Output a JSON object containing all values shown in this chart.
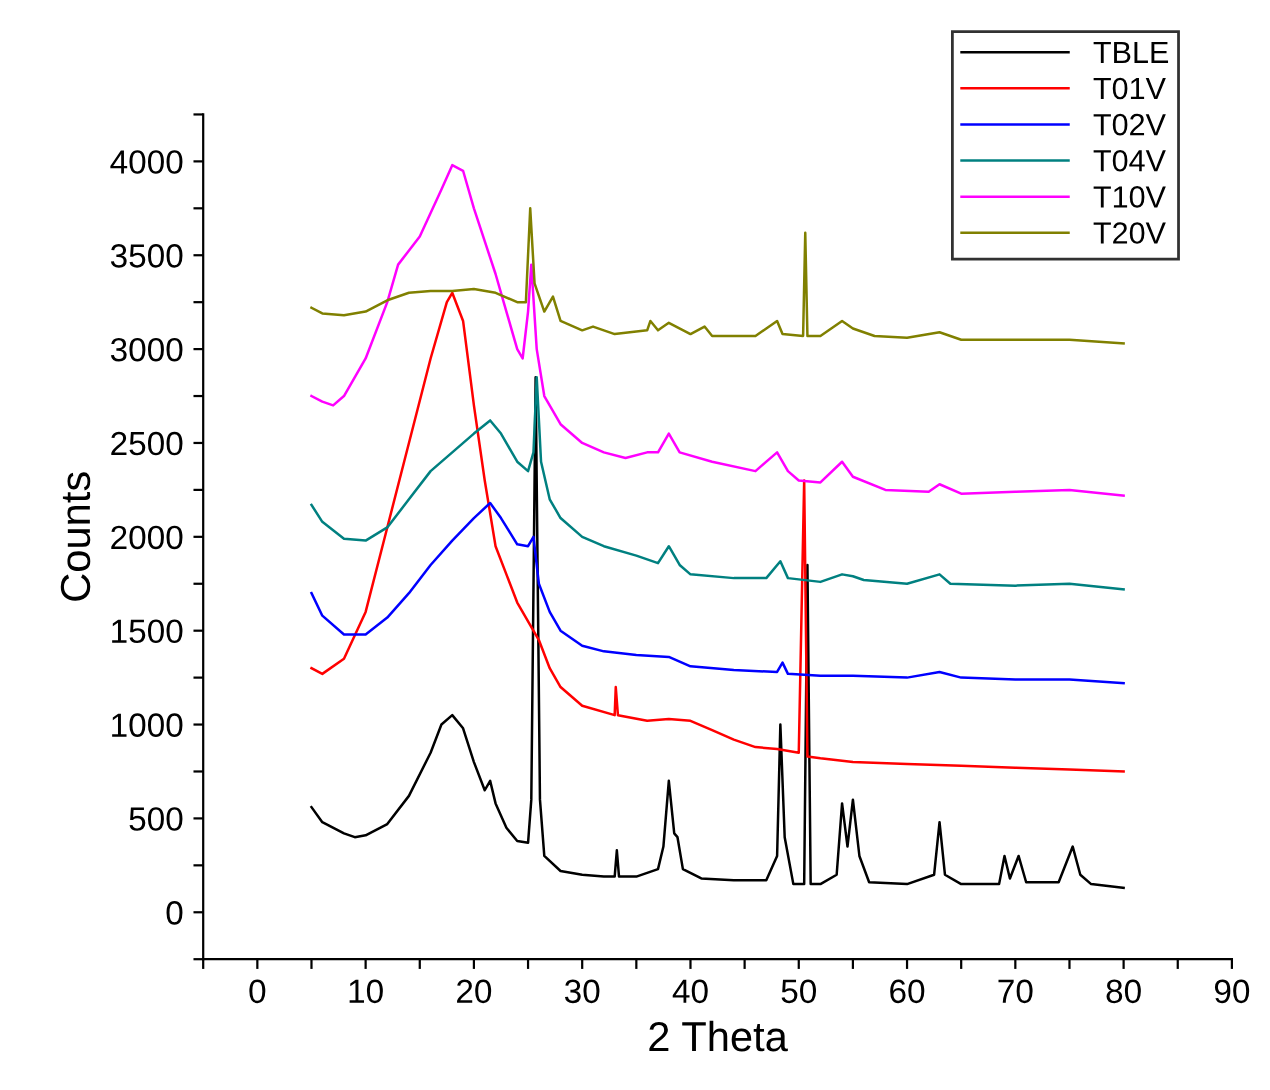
{
  "chart_data": {
    "type": "line",
    "xlabel": "2 Theta",
    "ylabel": "Counts",
    "xlim": [
      -5,
      90
    ],
    "ylim": [
      -250,
      4250
    ],
    "xticks": [
      {
        "value": -5,
        "label": null
      },
      0,
      {
        "value": 5,
        "label": null
      },
      10,
      {
        "value": 15,
        "label": null
      },
      20,
      {
        "value": 25,
        "label": null
      },
      30,
      {
        "value": 35,
        "label": null
      },
      40,
      {
        "value": 45,
        "label": null
      },
      50,
      {
        "value": 55,
        "label": null
      },
      60,
      {
        "value": 65,
        "label": null
      },
      70,
      {
        "value": 75,
        "label": null
      },
      80,
      {
        "value": 85,
        "label": null
      },
      90
    ],
    "yticks": [
      {
        "value": -250,
        "label": null
      },
      0,
      {
        "value": 250,
        "label": null
      },
      500,
      {
        "value": 750,
        "label": null
      },
      1000,
      {
        "value": 1250,
        "label": null
      },
      1500,
      {
        "value": 1750,
        "label": null
      },
      2000,
      {
        "value": 2250,
        "label": null
      },
      2500,
      {
        "value": 2750,
        "label": null
      },
      3000,
      {
        "value": 3250,
        "label": null
      },
      3500,
      {
        "value": 3750,
        "label": null
      },
      4000,
      {
        "value": 4250,
        "label": null
      }
    ],
    "legend": "top right",
    "grid": false,
    "marker": "none",
    "line_style": "solid",
    "series": [
      {
        "name": "TBLE",
        "color": "#000000",
        "x": [
          5,
          6,
          8,
          9,
          10,
          12,
          14,
          16,
          17,
          18,
          19,
          20,
          21,
          21.5,
          22,
          23,
          24,
          25,
          25.3,
          25.7,
          26.1,
          26.5,
          28,
          30,
          32,
          33,
          33.2,
          33.4,
          35,
          37,
          37.5,
          38,
          38.5,
          38.8,
          39.3,
          41,
          44,
          47,
          48,
          48.3,
          48.7,
          49.5,
          50.5,
          50.8,
          51.1,
          52,
          53.5,
          54,
          54.5,
          55,
          55.6,
          56.5,
          60,
          62.5,
          63,
          63.5,
          65,
          68.5,
          69,
          69.5,
          70.3,
          71,
          74,
          75.3,
          76,
          77,
          80
        ],
        "values": [
          560,
          480,
          420,
          400,
          410,
          470,
          620,
          850,
          1000,
          1050,
          980,
          800,
          650,
          700,
          580,
          450,
          380,
          370,
          600,
          2850,
          600,
          300,
          220,
          200,
          190,
          190,
          330,
          190,
          190,
          230,
          350,
          700,
          420,
          400,
          230,
          180,
          170,
          170,
          300,
          1000,
          400,
          150,
          150,
          1850,
          150,
          150,
          200,
          580,
          350,
          600,
          300,
          160,
          150,
          200,
          480,
          200,
          150,
          150,
          300,
          180,
          300,
          160,
          160,
          350,
          200,
          150,
          130
        ]
      },
      {
        "name": "T01V",
        "color": "#ff0000",
        "x": [
          5,
          6,
          8,
          10,
          12,
          14,
          16,
          17.5,
          18,
          19,
          20,
          21,
          22,
          23,
          24,
          25,
          26,
          27,
          28,
          30,
          33,
          33.1,
          33.3,
          36,
          38,
          40,
          42,
          44,
          46,
          48,
          50,
          50.5,
          50.8,
          52,
          55,
          60,
          65,
          70,
          75,
          80
        ],
        "values": [
          1300,
          1270,
          1350,
          1600,
          2050,
          2500,
          2950,
          3250,
          3300,
          3150,
          2700,
          2300,
          1950,
          1800,
          1650,
          1550,
          1450,
          1300,
          1200,
          1100,
          1050,
          1200,
          1050,
          1020,
          1030,
          1020,
          970,
          920,
          880,
          870,
          850,
          2300,
          830,
          820,
          800,
          790,
          780,
          770,
          760,
          750
        ]
      },
      {
        "name": "T02V",
        "color": "#0000ff",
        "x": [
          5,
          6,
          8,
          10,
          12,
          14,
          16,
          18,
          20,
          21.5,
          22.5,
          24,
          25,
          25.5,
          26,
          27,
          28,
          30,
          32,
          35,
          38,
          40,
          44,
          48,
          48.5,
          49,
          52,
          55,
          60,
          63,
          65,
          70,
          75,
          80
        ],
        "values": [
          1700,
          1580,
          1480,
          1480,
          1570,
          1700,
          1850,
          1980,
          2100,
          2180,
          2100,
          1960,
          1950,
          2000,
          1750,
          1600,
          1500,
          1420,
          1390,
          1370,
          1360,
          1310,
          1290,
          1280,
          1330,
          1270,
          1260,
          1260,
          1250,
          1280,
          1250,
          1240,
          1240,
          1220
        ]
      },
      {
        "name": "T04V",
        "color": "#008080",
        "x": [
          5,
          6,
          8,
          10,
          12,
          14,
          16,
          18,
          20,
          21.5,
          22.5,
          24,
          25,
          25.5,
          25.8,
          26.2,
          27,
          28,
          30,
          32,
          35,
          37,
          38,
          39,
          40,
          44,
          47,
          48.3,
          49,
          52,
          54,
          55,
          56,
          60,
          63,
          64,
          70,
          75,
          80
        ],
        "values": [
          2170,
          2080,
          1990,
          1980,
          2050,
          2200,
          2350,
          2450,
          2550,
          2620,
          2550,
          2400,
          2350,
          2450,
          2850,
          2400,
          2200,
          2100,
          2000,
          1950,
          1900,
          1860,
          1950,
          1850,
          1800,
          1780,
          1780,
          1870,
          1780,
          1760,
          1800,
          1790,
          1770,
          1750,
          1800,
          1750,
          1740,
          1750,
          1720
        ]
      },
      {
        "name": "T10V",
        "color": "#ff00ff",
        "x": [
          5,
          6,
          7,
          8,
          10,
          12,
          13,
          15,
          17,
          18,
          19,
          20,
          22,
          23,
          24,
          24.5,
          25,
          25.3,
          25.8,
          26.5,
          28,
          30,
          32,
          34,
          36,
          37,
          38,
          39,
          42,
          46,
          48,
          49,
          50,
          52,
          54,
          55,
          58,
          62,
          63,
          65,
          70,
          75,
          80
        ],
        "values": [
          2750,
          2720,
          2700,
          2750,
          2950,
          3250,
          3450,
          3600,
          3850,
          3980,
          3950,
          3750,
          3400,
          3200,
          3000,
          2950,
          3200,
          3450,
          3000,
          2750,
          2600,
          2500,
          2450,
          2420,
          2450,
          2450,
          2550,
          2450,
          2400,
          2350,
          2450,
          2350,
          2300,
          2290,
          2400,
          2320,
          2250,
          2240,
          2280,
          2230,
          2240,
          2250,
          2220
        ]
      },
      {
        "name": "T20V",
        "color": "#808000",
        "x": [
          5,
          6,
          8,
          10,
          12,
          14,
          16,
          18,
          20,
          22,
          24,
          24.8,
          25.2,
          25.6,
          26.5,
          27.3,
          28,
          30,
          31,
          33,
          36,
          36.3,
          37,
          38,
          40,
          41.3,
          42,
          46,
          48,
          48.5,
          50.4,
          50.6,
          50.8,
          52,
          54,
          55,
          57,
          60,
          63,
          65,
          70,
          75,
          80
        ],
        "values": [
          3220,
          3190,
          3180,
          3200,
          3260,
          3300,
          3310,
          3310,
          3320,
          3300,
          3250,
          3250,
          3750,
          3350,
          3200,
          3280,
          3150,
          3100,
          3120,
          3080,
          3100,
          3150,
          3100,
          3140,
          3080,
          3120,
          3070,
          3070,
          3150,
          3080,
          3070,
          3620,
          3070,
          3070,
          3150,
          3110,
          3070,
          3060,
          3090,
          3050,
          3050,
          3050,
          3030
        ]
      }
    ]
  }
}
